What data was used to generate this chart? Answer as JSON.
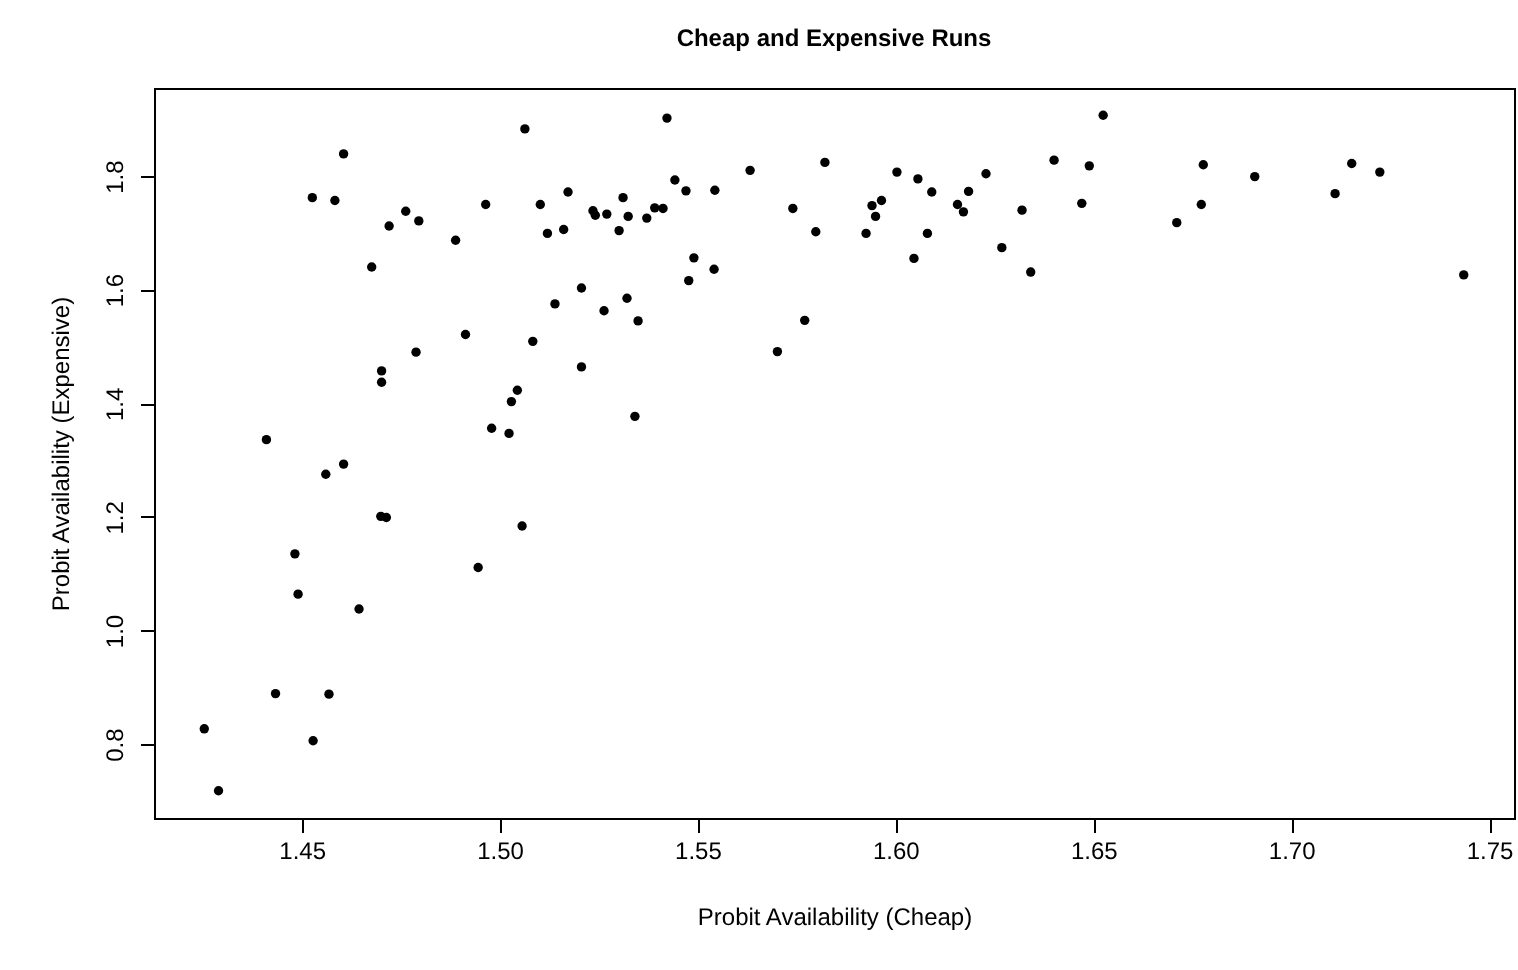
{
  "chart_data": {
    "type": "scatter",
    "title": "Cheap and Expensive Runs",
    "xlabel": "Probit Availability (Cheap)",
    "ylabel": "Probit Availability (Expensive)",
    "xlim": [
      1.4127,
      1.7563
    ],
    "ylim": [
      0.67,
      1.955
    ],
    "xticks": [
      1.45,
      {
        "value": 1.5,
        "label": "1.50"
      },
      1.55,
      {
        "value": 1.6,
        "label": "1.60"
      },
      1.65,
      {
        "value": 1.7,
        "label": "1.70"
      },
      1.75
    ],
    "yticks": [
      0.8,
      {
        "value": 1,
        "label": "1.0"
      },
      1.2,
      1.4,
      1.6,
      1.8
    ],
    "grid": false,
    "marker": "circle",
    "series": [
      {
        "color": "#000000",
        "x": [
          1.4254,
          1.429,
          1.4529,
          1.4606,
          1.5064,
          1.4527,
          1.4584,
          1.4721,
          1.4763,
          1.4796,
          1.4889,
          1.4965,
          1.4677,
          1.5103,
          1.5173,
          1.5121,
          1.5162,
          1.5236,
          1.5242,
          1.5271,
          1.5312,
          1.5325,
          1.5302,
          1.5207,
          1.5322,
          1.514,
          1.5264,
          1.535,
          1.5084,
          1.5207,
          1.4914,
          1.4789,
          1.4702,
          1.4702,
          1.5045,
          1.503,
          1.498,
          1.5024,
          1.5342,
          1.4411,
          1.4561,
          1.4606,
          1.47,
          1.4714,
          1.5057,
          1.4483,
          1.4946,
          1.4491,
          1.4645,
          1.4434,
          1.4569,
          1.5423,
          1.5372,
          1.5392,
          1.5413,
          1.5443,
          1.5471,
          1.5544,
          1.5491,
          1.5478,
          1.5542,
          1.5633,
          1.5702,
          1.5771,
          1.5741,
          1.5799,
          1.5822,
          1.5926,
          1.5941,
          1.595,
          1.5965,
          1.6004,
          1.6057,
          1.6092,
          1.6047,
          1.6081,
          1.6157,
          1.6172,
          1.6185,
          1.6229,
          1.6269,
          1.632,
          1.6342,
          1.6401,
          1.6471,
          1.649,
          1.6525,
          1.6711,
          1.6773,
          1.6778,
          1.6908,
          1.7111,
          1.7153,
          1.7224,
          1.7436
        ],
        "values": [
          0.827,
          0.718,
          0.806,
          1.839,
          1.883,
          1.762,
          1.757,
          1.712,
          1.738,
          1.721,
          1.687,
          1.75,
          1.64,
          1.75,
          1.772,
          1.699,
          1.706,
          1.739,
          1.731,
          1.733,
          1.762,
          1.729,
          1.704,
          1.603,
          1.585,
          1.575,
          1.563,
          1.545,
          1.509,
          1.464,
          1.521,
          1.49,
          1.457,
          1.437,
          1.423,
          1.403,
          1.356,
          1.347,
          1.377,
          1.336,
          1.275,
          1.293,
          1.201,
          1.199,
          1.184,
          1.135,
          1.111,
          1.064,
          1.038,
          0.889,
          0.888,
          1.902,
          1.726,
          1.744,
          1.743,
          1.793,
          1.774,
          1.775,
          1.656,
          1.616,
          1.636,
          1.81,
          1.491,
          1.546,
          1.743,
          1.702,
          1.824,
          1.699,
          1.748,
          1.729,
          1.757,
          1.807,
          1.795,
          1.772,
          1.655,
          1.699,
          1.75,
          1.737,
          1.773,
          1.804,
          1.674,
          1.74,
          1.631,
          1.828,
          1.752,
          1.818,
          1.907,
          1.718,
          1.75,
          1.82,
          1.799,
          1.769,
          1.822,
          1.807,
          1.626
        ]
      }
    ]
  }
}
